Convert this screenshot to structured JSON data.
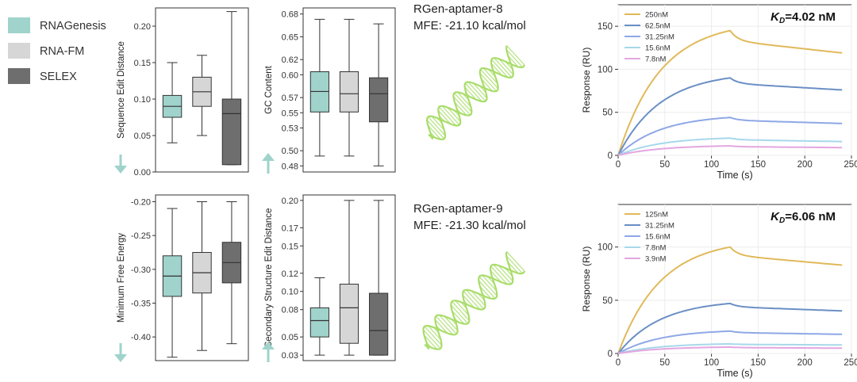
{
  "legend": {
    "items": [
      {
        "label": "RNAGenesis",
        "color": "#9fd3cb"
      },
      {
        "label": "RNA-FM",
        "color": "#d6d6d6"
      },
      {
        "label": "SELEX",
        "color": "#6e6e6e"
      }
    ]
  },
  "colors": {
    "arrow": "#9fd3cb",
    "box_edge": "#333333",
    "helix": "#a9dd6a"
  },
  "aptamers": [
    {
      "name": "RGen-aptamer-8",
      "mfe": "MFE: -21.10 kcal/mol"
    },
    {
      "name": "RGen-aptamer-9",
      "mfe": "MFE: -21.30 kcal/mol"
    }
  ],
  "chart_data": [
    {
      "type": "box",
      "ylabel": "Sequence Edit Distance",
      "yticks": [
        0.0,
        0.05,
        0.1,
        0.15,
        0.2
      ],
      "ytick_labels": [
        "0.00",
        "0.05",
        "0.10",
        "0.15",
        "0.20"
      ],
      "ylim": [
        0.0,
        0.225
      ],
      "arrow": "down",
      "groups": [
        {
          "name": "RNAGenesis",
          "min": 0.04,
          "q1": 0.075,
          "median": 0.09,
          "q3": 0.105,
          "max": 0.15
        },
        {
          "name": "RNA-FM",
          "min": 0.05,
          "q1": 0.09,
          "median": 0.11,
          "q3": 0.13,
          "max": 0.16
        },
        {
          "name": "SELEX",
          "min": 0.01,
          "q1": 0.01,
          "median": 0.08,
          "q3": 0.1,
          "max": 0.22
        }
      ]
    },
    {
      "type": "box",
      "ylabel": "GC Content",
      "yticks": [
        0.48,
        0.5,
        0.53,
        0.55,
        0.57,
        0.6,
        0.62,
        0.65,
        0.68
      ],
      "ytick_labels": [
        "0.48",
        "0.50",
        "0.53",
        "0.55",
        "0.57",
        "0.60",
        "0.62",
        "0.65",
        "0.68"
      ],
      "ylim": [
        0.472,
        0.688
      ],
      "arrow": "up",
      "groups": [
        {
          "name": "RNAGenesis",
          "min": 0.493,
          "q1": 0.551,
          "median": 0.578,
          "q3": 0.604,
          "max": 0.673
        },
        {
          "name": "RNA-FM",
          "min": 0.493,
          "q1": 0.551,
          "median": 0.575,
          "q3": 0.604,
          "max": 0.673
        },
        {
          "name": "SELEX",
          "min": 0.48,
          "q1": 0.538,
          "median": 0.575,
          "q3": 0.596,
          "max": 0.667
        }
      ]
    },
    {
      "type": "box",
      "ylabel": "Minimum Free Energy",
      "yticks": [
        -0.4,
        -0.35,
        -0.3,
        -0.25,
        -0.2
      ],
      "ytick_labels": [
        "-0.40",
        "-0.35",
        "-0.30",
        "-0.25",
        "-0.20"
      ],
      "ylim": [
        -0.435,
        -0.19
      ],
      "arrow": "down",
      "groups": [
        {
          "name": "RNAGenesis",
          "min": -0.43,
          "q1": -0.34,
          "median": -0.31,
          "q3": -0.28,
          "max": -0.21
        },
        {
          "name": "RNA-FM",
          "min": -0.42,
          "q1": -0.335,
          "median": -0.305,
          "q3": -0.275,
          "max": -0.2
        },
        {
          "name": "SELEX",
          "min": -0.41,
          "q1": -0.32,
          "median": -0.29,
          "q3": -0.26,
          "max": -0.2
        }
      ]
    },
    {
      "type": "box",
      "ylabel": "Secondary Structure Edit Distance",
      "yticks": [
        0.03,
        0.05,
        0.08,
        0.1,
        0.12,
        0.15,
        0.17,
        0.2
      ],
      "ytick_labels": [
        "0.03",
        "0.05",
        "0.08",
        "0.10",
        "0.12",
        "0.15",
        "0.17",
        "0.20"
      ],
      "ylim": [
        0.024,
        0.206
      ],
      "arrow": "up",
      "groups": [
        {
          "name": "RNAGenesis",
          "min": 0.03,
          "q1": 0.05,
          "median": 0.068,
          "q3": 0.082,
          "max": 0.115
        },
        {
          "name": "RNA-FM",
          "min": 0.03,
          "q1": 0.043,
          "median": 0.082,
          "q3": 0.108,
          "max": 0.2
        },
        {
          "name": "SELEX",
          "min": 0.03,
          "q1": 0.03,
          "median": 0.057,
          "q3": 0.098,
          "max": 0.2
        }
      ]
    },
    {
      "type": "line",
      "xlabel": "Time (s)",
      "ylabel": "Response (RU)",
      "kd_prefix": "K",
      "kd_sub": "D",
      "kd_value": "=4.02 nM",
      "xticks": [
        0,
        50,
        100,
        150,
        200,
        250
      ],
      "xtick_labels": [
        "0",
        "50",
        "100",
        "150",
        "200",
        "250"
      ],
      "yticks": [
        0,
        50,
        100,
        150
      ],
      "ytick_labels": [
        "0",
        "50",
        "100",
        "150"
      ],
      "xlim": [
        0,
        250
      ],
      "ylim": [
        0,
        175
      ],
      "t_assoc_end": 120,
      "t_end": 240,
      "legend_position": "top-left",
      "series": [
        {
          "name": "250nM",
          "color": "#e0b95a",
          "peak": 145,
          "end": 119
        },
        {
          "name": "62.5nM",
          "color": "#6a8fc4",
          "peak": 90,
          "end": 76
        },
        {
          "name": "31.25nM",
          "color": "#8ea7e6",
          "peak": 44,
          "end": 37
        },
        {
          "name": "15.6nM",
          "color": "#a7d8ea",
          "peak": 20,
          "end": 16
        },
        {
          "name": "7.8nM",
          "color": "#e3a6e0",
          "peak": 11,
          "end": 9
        }
      ]
    },
    {
      "type": "line",
      "xlabel": "Time (s)",
      "ylabel": "Response (RU)",
      "kd_prefix": "K",
      "kd_sub": "D",
      "kd_value": "=6.06 nM",
      "xticks": [
        0,
        50,
        100,
        150,
        200,
        250
      ],
      "xtick_labels": [
        "0",
        "50",
        "100",
        "150",
        "200",
        "250"
      ],
      "yticks": [
        0,
        50,
        100
      ],
      "ytick_labels": [
        "0",
        "50",
        "100"
      ],
      "xlim": [
        0,
        250
      ],
      "ylim": [
        0,
        140
      ],
      "t_assoc_end": 120,
      "t_end": 240,
      "legend_position": "top-left",
      "series": [
        {
          "name": "125nM",
          "color": "#e0b95a",
          "peak": 100,
          "end": 83
        },
        {
          "name": "31.25nM",
          "color": "#6a8fc4",
          "peak": 47,
          "end": 40
        },
        {
          "name": "15.6nM",
          "color": "#8ea7e6",
          "peak": 21,
          "end": 18
        },
        {
          "name": "7.8nM",
          "color": "#a7d8ea",
          "peak": 9,
          "end": 8
        },
        {
          "name": "3.9nM",
          "color": "#e3a6e0",
          "peak": 6,
          "end": 5
        }
      ]
    }
  ]
}
